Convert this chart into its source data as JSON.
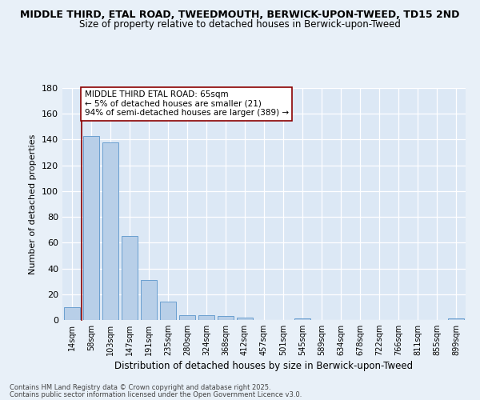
{
  "title1": "MIDDLE THIRD, ETAL ROAD, TWEEDMOUTH, BERWICK-UPON-TWEED, TD15 2ND",
  "title2": "Size of property relative to detached houses in Berwick-upon-Tweed",
  "xlabel": "Distribution of detached houses by size in Berwick-upon-Tweed",
  "ylabel": "Number of detached properties",
  "categories": [
    "14sqm",
    "58sqm",
    "103sqm",
    "147sqm",
    "191sqm",
    "235sqm",
    "280sqm",
    "324sqm",
    "368sqm",
    "412sqm",
    "457sqm",
    "501sqm",
    "545sqm",
    "589sqm",
    "634sqm",
    "678sqm",
    "722sqm",
    "766sqm",
    "811sqm",
    "855sqm",
    "899sqm"
  ],
  "values": [
    10,
    143,
    138,
    65,
    31,
    14,
    4,
    4,
    3,
    2,
    0,
    0,
    1,
    0,
    0,
    0,
    0,
    0,
    0,
    0,
    1
  ],
  "bar_color": "#b8cfe8",
  "bar_edge_color": "#6a9fd0",
  "red_line_x": 0.5,
  "annotation_text_line1": "MIDDLE THIRD ETAL ROAD: 65sqm",
  "annotation_text_line2": "← 5% of detached houses are smaller (21)",
  "annotation_text_line3": "94% of semi-detached houses are larger (389) →",
  "ylim": [
    0,
    180
  ],
  "yticks": [
    0,
    20,
    40,
    60,
    80,
    100,
    120,
    140,
    160,
    180
  ],
  "background_color": "#e8f0f8",
  "plot_background": "#dce8f5",
  "footer1": "Contains HM Land Registry data © Crown copyright and database right 2025.",
  "footer2": "Contains public sector information licensed under the Open Government Licence v3.0.",
  "title_fontsize": 9,
  "subtitle_fontsize": 8.5
}
